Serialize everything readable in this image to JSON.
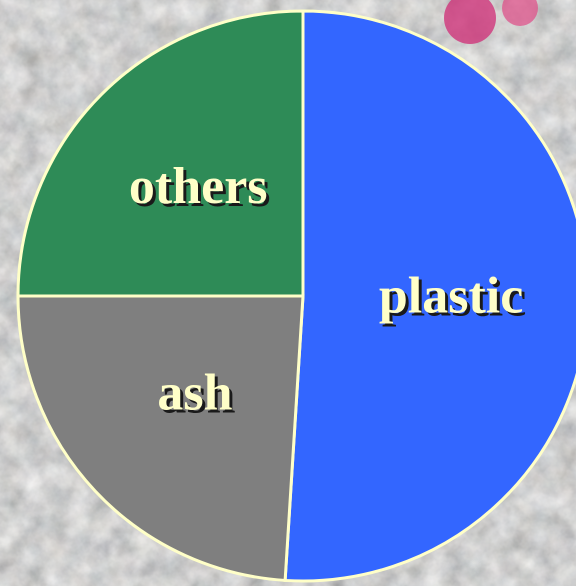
{
  "chart_data": {
    "type": "pie",
    "slices": [
      {
        "label": "plastic",
        "value": 51,
        "color": "#3366ff"
      },
      {
        "label": "ash",
        "value": 24,
        "color": "#7f7f7f"
      },
      {
        "label": "others",
        "value": 25,
        "color": "#2e8b57"
      }
    ],
    "legend": "none",
    "label_color": "#ffffc8",
    "edge_color": "#ffffc8",
    "start_angle_deg": 0,
    "direction": "clockwise"
  }
}
